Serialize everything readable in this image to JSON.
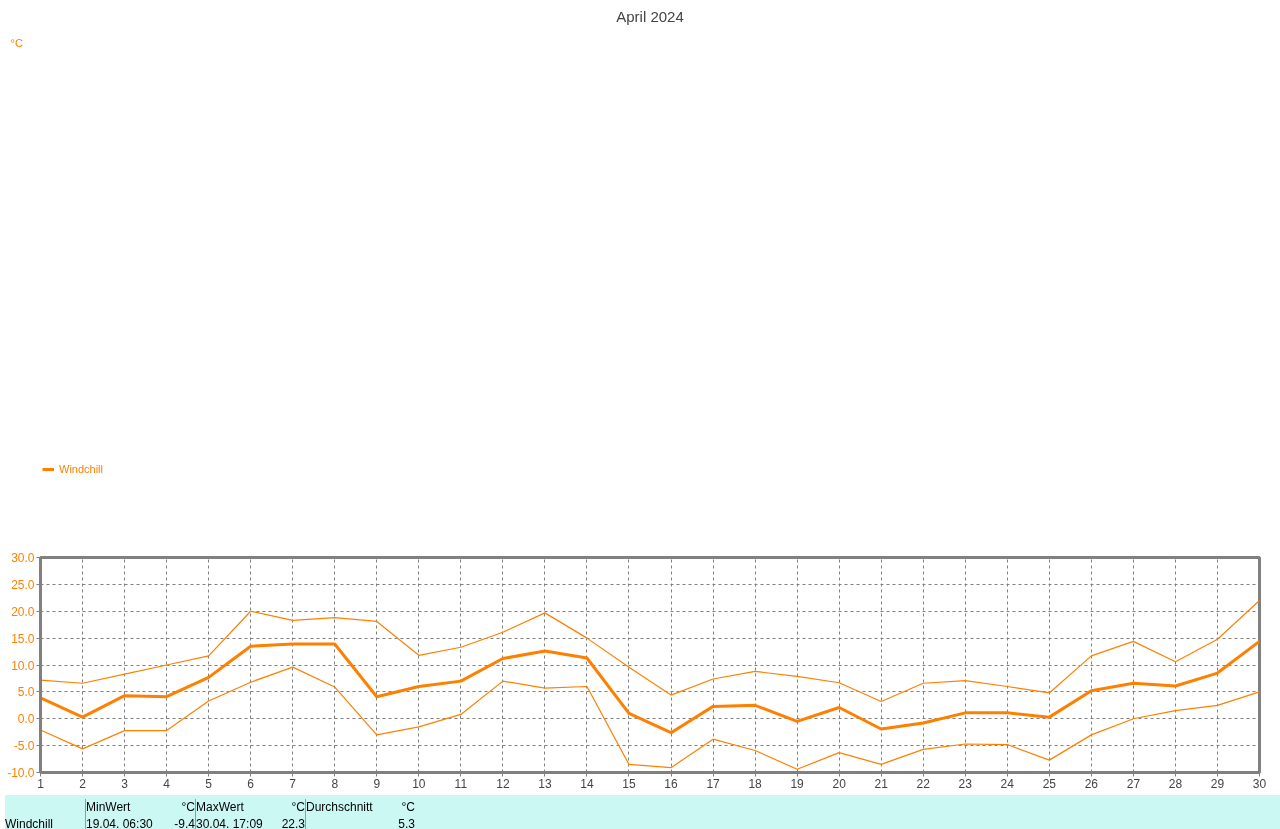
{
  "chart_data": {
    "type": "line",
    "title": "April 2024",
    "x": [
      1,
      2,
      3,
      4,
      5,
      6,
      7,
      8,
      9,
      10,
      11,
      12,
      13,
      14,
      15,
      16,
      17,
      18,
      19,
      20,
      21,
      22,
      23,
      24,
      25,
      26,
      27,
      28,
      29,
      30
    ],
    "series": [
      {
        "color": "#ff8000",
        "values": [
          7.2,
          6.6,
          8.3,
          10.0,
          11.7,
          20.0,
          18.3,
          18.8,
          18.1,
          11.8,
          13.3,
          16.1,
          19.7,
          15.0,
          9.6,
          4.4,
          7.4,
          8.8,
          7.9,
          6.7,
          3.2,
          6.6,
          7.1,
          6.0,
          4.8,
          11.7,
          14.4,
          10.6,
          14.8,
          22.0
        ]
      },
      {
        "name": "Windchill",
        "color": "#ff8000",
        "values": [
          3.9,
          0.3,
          4.3,
          4.1,
          7.7,
          13.5,
          13.9,
          13.9,
          4.1,
          6.0,
          7.0,
          11.2,
          12.6,
          11.3,
          1.0,
          -2.6,
          2.3,
          2.5,
          -0.5,
          2.1,
          -1.9,
          -0.8,
          1.1,
          1.1,
          0.3,
          5.2,
          6.6,
          6.1,
          8.5,
          14.4
        ]
      },
      {
        "color": "#ff8000",
        "values": [
          -2.1,
          -5.6,
          -2.2,
          -2.2,
          3.3,
          6.8,
          9.6,
          5.9,
          -3.0,
          -1.5,
          0.8,
          7.0,
          5.7,
          6.0,
          -8.5,
          -9.1,
          -3.8,
          -5.9,
          -9.4,
          -6.3,
          -8.5,
          -5.7,
          -4.7,
          -4.8,
          -7.7,
          -3.0,
          0.0,
          1.5,
          2.5,
          5.0
        ]
      }
    ],
    "xlim": [
      1,
      30
    ],
    "xticks": [
      1,
      2,
      3,
      4,
      5,
      6,
      7,
      8,
      9,
      10,
      11,
      12,
      13,
      14,
      15,
      16,
      17,
      18,
      19,
      20,
      21,
      22,
      23,
      24,
      25,
      26,
      27,
      28,
      29,
      30
    ],
    "ylim": [
      -10,
      30
    ],
    "yticks": [
      {
        "value": -10,
        "label": "-10.0"
      },
      {
        "value": -5,
        "label": "-5.0"
      },
      {
        "value": 0,
        "label": "0.0"
      },
      {
        "value": 5,
        "label": "5.0"
      },
      {
        "value": 10,
        "label": "10.0"
      },
      {
        "value": 15,
        "label": "15.0"
      },
      {
        "value": 20,
        "label": "20.0"
      },
      {
        "value": 25,
        "label": "25.0"
      },
      {
        "value": 30,
        "label": "30.0"
      }
    ],
    "grid": true,
    "legend": "top left",
    "annotations": [
      "°C",
      "MinWert",
      "°C",
      "MaxWert",
      "°C",
      "Durchschnitt",
      "°C",
      "Windchill",
      "19.04.  06:30",
      "-9.4",
      "30.04.  17:09",
      "22.3",
      "5.3"
    ]
  }
}
